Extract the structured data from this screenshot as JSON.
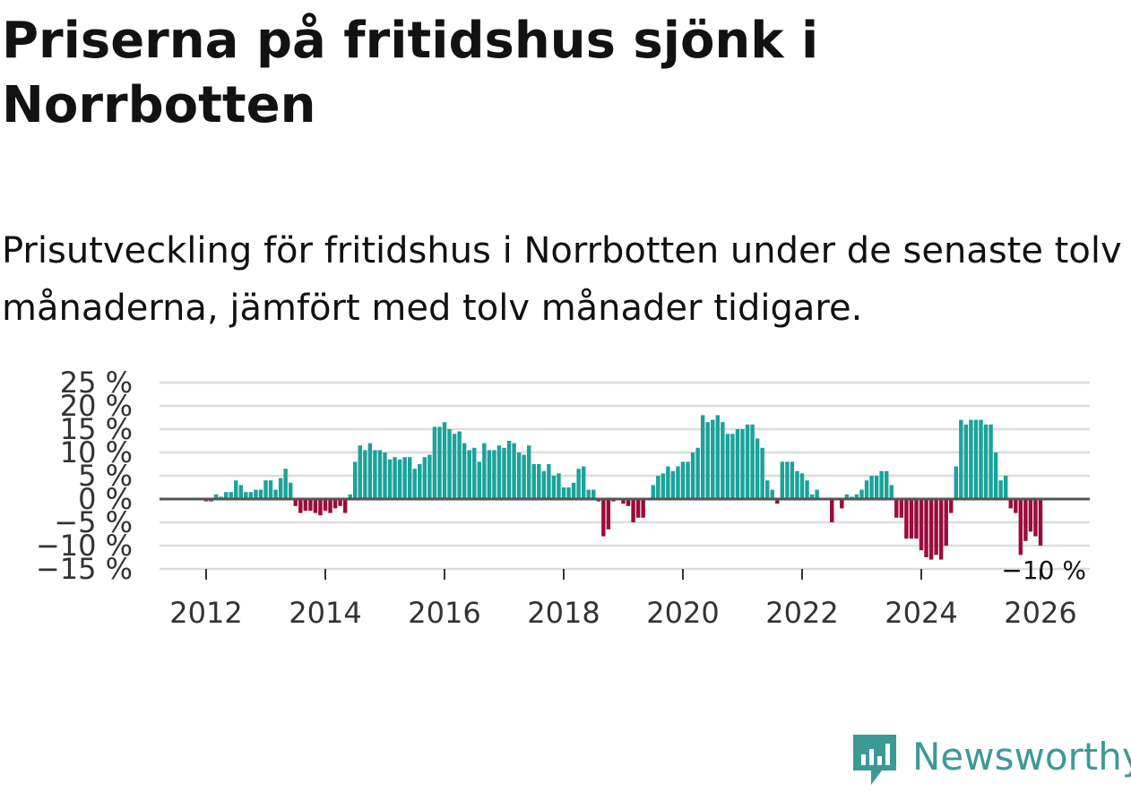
{
  "title": "Priserna på fritidshus sjönk i Norrbotten",
  "subtitle": "Prisutveckling för fritidshus i Norrbotten under de senaste tolv månaderna, jämfört med tolv månader tidigare.",
  "brand": {
    "name": "Newsworthy",
    "color": "#3c9a95",
    "icon": "newsworthy-logo-icon"
  },
  "colors": {
    "positive": "#1aa39a",
    "negative": "#9b0b3b",
    "zero_line": "#555555",
    "grid": "#dddddd"
  },
  "chart_data": {
    "type": "bar",
    "title": "Priserna på fritidshus sjönk i Norrbotten",
    "xlabel": "",
    "ylabel": "",
    "ylim": [
      -15,
      25
    ],
    "y_ticks": [
      25,
      20,
      15,
      10,
      5,
      0,
      -5,
      -10,
      -15
    ],
    "y_tick_labels": [
      "25 %",
      "20 %",
      "15 %",
      "10 %",
      "5 %",
      "0 %",
      "−5 %",
      "−10 %",
      "−15 %"
    ],
    "x_ticks": [
      2012,
      2014,
      2016,
      2018,
      2020,
      2022,
      2024,
      2026
    ],
    "x_tick_labels": [
      "2012",
      "2014",
      "2016",
      "2018",
      "2020",
      "2022",
      "2024",
      "2026"
    ],
    "start": {
      "year": 2012,
      "month": 1
    },
    "grid": true,
    "last_value_label": "−10 %",
    "series": [
      {
        "name": "Prisutveckling",
        "values": [
          -0.5,
          -0.5,
          1,
          0.5,
          1.5,
          1.5,
          4,
          3,
          1.5,
          1.5,
          2,
          2,
          4,
          4,
          2,
          4.5,
          6.5,
          3.5,
          -1.5,
          -3,
          -2.5,
          -2.5,
          -3,
          -3.5,
          -2.5,
          -3,
          -2,
          -1.5,
          -3,
          1,
          8,
          11.5,
          10.5,
          12,
          10.5,
          10.5,
          10,
          8.5,
          9,
          8.5,
          9,
          9,
          6.5,
          7.5,
          9,
          9.5,
          15.5,
          15.5,
          16.5,
          15,
          14,
          14.5,
          12,
          10.5,
          11,
          8,
          12,
          10.5,
          10.5,
          11.5,
          11,
          12.5,
          12,
          10,
          9.5,
          11.5,
          7.5,
          7.5,
          6,
          7.5,
          5,
          5.5,
          2.5,
          2.5,
          3.5,
          6.5,
          7,
          2,
          2,
          -0.5,
          -8,
          -6.5,
          -0.5,
          0,
          -1,
          -1.5,
          -5,
          -4,
          -4,
          0,
          3,
          5,
          5.5,
          7,
          6,
          7,
          8,
          8,
          10,
          11,
          18,
          16.5,
          17,
          18,
          16.5,
          14,
          14,
          15,
          15,
          16,
          16,
          13,
          11,
          4,
          2,
          -1,
          8,
          8,
          8,
          6,
          5.5,
          4,
          1,
          2,
          0,
          0,
          -5,
          0,
          -2,
          1,
          0.5,
          1,
          2,
          4,
          5,
          5,
          6,
          6,
          3,
          -4,
          -4,
          -8.5,
          -8.5,
          -8.5,
          -11,
          -12.5,
          -13,
          -12,
          -13,
          -10,
          -3,
          7,
          17,
          16,
          17,
          17,
          17,
          16,
          16,
          10,
          4,
          5,
          -2,
          -3,
          -12,
          -9,
          -7,
          -8,
          -10
        ]
      }
    ]
  }
}
